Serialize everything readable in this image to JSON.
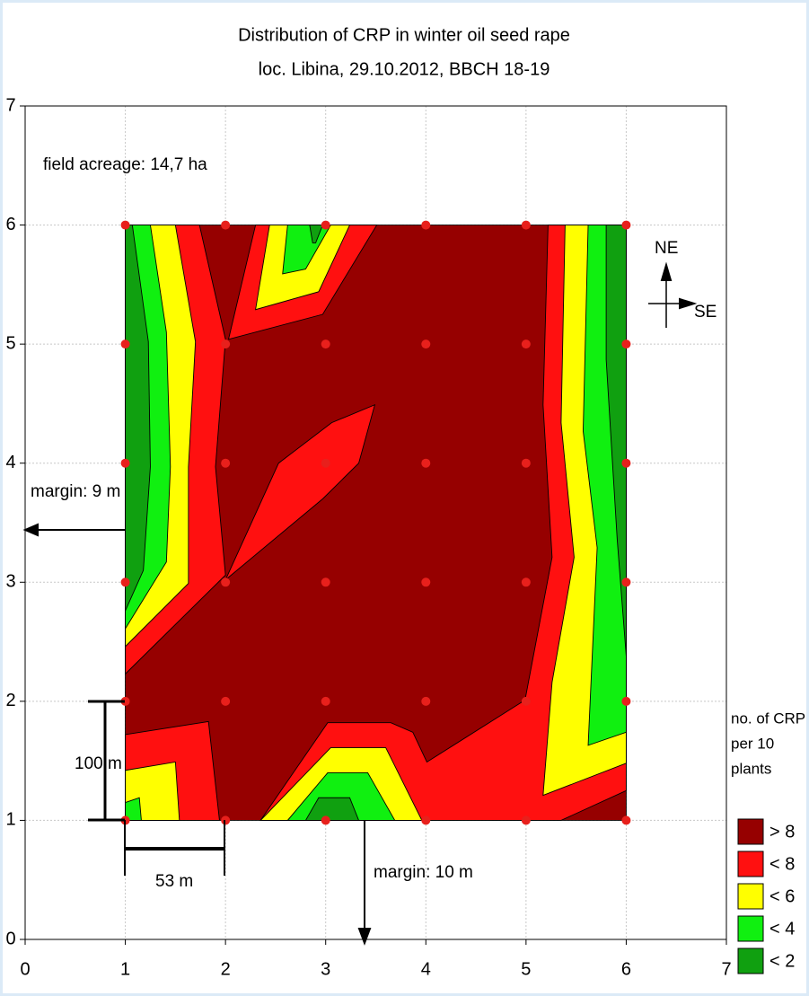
{
  "chart_data": {
    "type": "contour",
    "title": "Distribution of CRP in winter oil seed rape",
    "subtitle": "loc. Libina, 29.10.2012, BBCH 18-19",
    "xlim": [
      0,
      7
    ],
    "ylim": [
      0,
      7
    ],
    "xticks": [
      0,
      1,
      2,
      3,
      4,
      5,
      6,
      7
    ],
    "yticks": [
      0,
      1,
      2,
      3,
      4,
      5,
      6,
      7
    ],
    "grid": true,
    "legend_title": [
      "no. of CRP",
      "per 10",
      "plants"
    ],
    "legend_position": "lower right",
    "levels": [
      {
        "label": "> 8",
        "color": "#960000",
        "regions": [
          {
            "x": [
              1,
              6,
              6,
              1
            ],
            "y": [
              1,
              1,
              6,
              6
            ]
          }
        ]
      },
      {
        "label": "< 8",
        "color": "#ff1010",
        "regions": [
          {
            "x": [
              1,
              1.74,
              2,
              1.9,
              2,
              1
            ],
            "y": [
              6,
              6,
              5.04,
              3.97,
              3.06,
              2.23
            ]
          },
          {
            "x": [
              2.3,
              3.51,
              2.97,
              2.03
            ],
            "y": [
              6,
              6,
              5.25,
              5.04
            ]
          },
          {
            "x": [
              2,
              2.53,
              3.06,
              3.49,
              3.33,
              2.97
            ],
            "y": [
              3.02,
              4,
              4.34,
              4.49,
              4,
              3.7
            ]
          },
          {
            "x": [
              5.22,
              6,
              6,
              5.35,
              2.35,
              3.02,
              3.65,
              3.87,
              4.01,
              4.99,
              5.26,
              5.17
            ],
            "y": [
              6,
              6,
              1.25,
              1,
              1,
              1.82,
              1.82,
              1.74,
              1.49,
              2.01,
              3.21,
              4.49
            ]
          },
          {
            "x": [
              1,
              1.83,
              1.94,
              1
            ],
            "y": [
              1.72,
              1.83,
              1,
              1
            ]
          }
        ]
      },
      {
        "label": "< 6",
        "color": "#ffff00",
        "regions": [
          {
            "x": [
              1,
              1.5,
              1.7,
              1.63,
              1.63,
              1
            ],
            "y": [
              6,
              6,
              5.02,
              3.97,
              2.99,
              2.46
            ]
          },
          {
            "x": [
              2.44,
              3.24,
              2.93,
              2.3
            ],
            "y": [
              6,
              6,
              5.44,
              5.29
            ]
          },
          {
            "x": [
              5.39,
              6,
              6,
              5.17,
              5.26,
              5.48,
              5.35
            ],
            "y": [
              6,
              6,
              1.48,
              1.21,
              2.16,
              3.21,
              4.34
            ]
          },
          {
            "x": [
              2.35,
              3.05,
              3.6,
              3.96
            ],
            "y": [
              1,
              1.61,
              1.61,
              1
            ]
          },
          {
            "x": [
              1,
              1.5,
              1.54,
              1
            ],
            "y": [
              1.42,
              1.49,
              1,
              1
            ]
          }
        ]
      },
      {
        "label": "< 4",
        "color": "#10f010",
        "regions": [
          {
            "x": [
              1,
              1.25,
              1.41,
              1.45,
              1.41,
              1
            ],
            "y": [
              6,
              6,
              5.1,
              3.97,
              3.17,
              2.61
            ]
          },
          {
            "x": [
              2.62,
              3.05,
              2.8,
              2.57
            ],
            "y": [
              6,
              6,
              5.63,
              5.59
            ]
          },
          {
            "x": [
              5.62,
              6,
              6,
              5.62,
              5.71,
              5.57
            ],
            "y": [
              6,
              6,
              1.74,
              1.63,
              3.29,
              4.27
            ]
          },
          {
            "x": [
              2.62,
              3.02,
              3.42,
              3.69
            ],
            "y": [
              1,
              1.4,
              1.4,
              1
            ]
          },
          {
            "x": [
              1,
              1.14,
              1.16,
              1
            ],
            "y": [
              1.15,
              1.19,
              1,
              1
            ]
          }
        ]
      },
      {
        "label": "< 2",
        "color": "#10a010",
        "regions": [
          {
            "x": [
              1,
              1.07,
              1.23,
              1.25,
              1.18,
              1
            ],
            "y": [
              6,
              6,
              5.02,
              3.97,
              3.1,
              2.76
            ]
          },
          {
            "x": [
              2.84,
              2.97,
              2.9,
              2.87
            ],
            "y": [
              6,
              6,
              5.85,
              5.85
            ]
          },
          {
            "x": [
              5.8,
              6,
              6,
              5.91,
              5.8
            ],
            "y": [
              6,
              6,
              2.38,
              3.36,
              4.87
            ]
          },
          {
            "x": [
              2.8,
              2.93,
              3.24,
              3.33
            ],
            "y": [
              1,
              1.19,
              1.19,
              1
            ]
          }
        ]
      }
    ],
    "points": {
      "color": "#e8201c",
      "x": [
        1,
        2,
        3,
        4,
        5,
        6,
        1,
        2,
        3,
        4,
        5,
        6,
        1,
        2,
        3,
        4,
        5,
        6,
        1,
        2,
        3,
        4,
        5,
        6,
        1,
        2,
        3,
        4,
        5,
        6,
        1,
        2,
        3,
        4,
        5,
        6
      ],
      "y": [
        6,
        6,
        6,
        6,
        6,
        6,
        5,
        5,
        5,
        5,
        5,
        5,
        4,
        4,
        4,
        4,
        4,
        4,
        3,
        3,
        3,
        3,
        3,
        3,
        2,
        2,
        2,
        2,
        2,
        2,
        1,
        1,
        1,
        1,
        1,
        1
      ]
    },
    "annotations": {
      "acreage": "field acreage: 14,7 ha",
      "margin_left": "margin: 9 m",
      "margin_bottom": "margin: 10 m",
      "height": "100 m",
      "width": "53 m",
      "north": "NE",
      "east": "SE"
    }
  }
}
